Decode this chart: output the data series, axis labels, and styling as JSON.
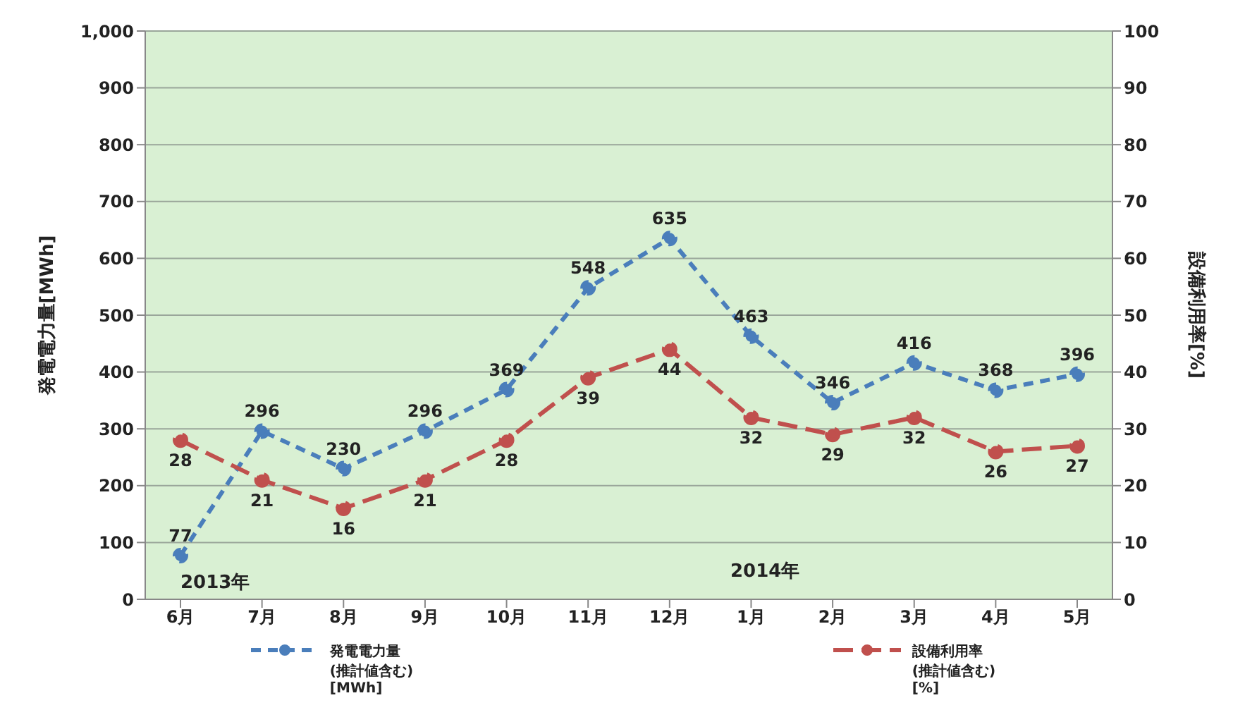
{
  "chart_data": {
    "type": "line",
    "categories": [
      "6月",
      "7月",
      "8月",
      "9月",
      "10月",
      "11月",
      "12月",
      "1月",
      "2月",
      "3月",
      "4月",
      "5月"
    ],
    "series": [
      {
        "name": "発電電力量\n(推計値含む)\n[MWh]",
        "color": "#4a7ebb",
        "values": [
          77,
          296,
          230,
          296,
          369,
          548,
          635,
          463,
          346,
          416,
          368,
          396
        ],
        "line_style": "dashed"
      },
      {
        "name": "設備利用率\n(推計値含む)\n[%]",
        "color": "#c0504d",
        "values": [
          28,
          21,
          16,
          21,
          28,
          39,
          44,
          32,
          29,
          32,
          26,
          27
        ],
        "axis": "y2",
        "line_style": "dashed"
      }
    ],
    "ylabel": "発電電力量[MWh]",
    "y2label": "設備利用率[%]",
    "ylim": [
      0,
      1000
    ],
    "yticks": [
      0,
      100,
      200,
      300,
      400,
      500,
      600,
      700,
      800,
      900,
      {
        "value": 1000,
        "label": "1,000"
      }
    ],
    "y2lim": [
      0,
      100
    ],
    "y2ticks": [
      0,
      10,
      20,
      30,
      40,
      50,
      60,
      70,
      80,
      90,
      100
    ],
    "annotations": [
      "2013年",
      "2014年"
    ],
    "data_labels": true,
    "grid": "y",
    "legend": "bottom",
    "marker": "circle"
  }
}
